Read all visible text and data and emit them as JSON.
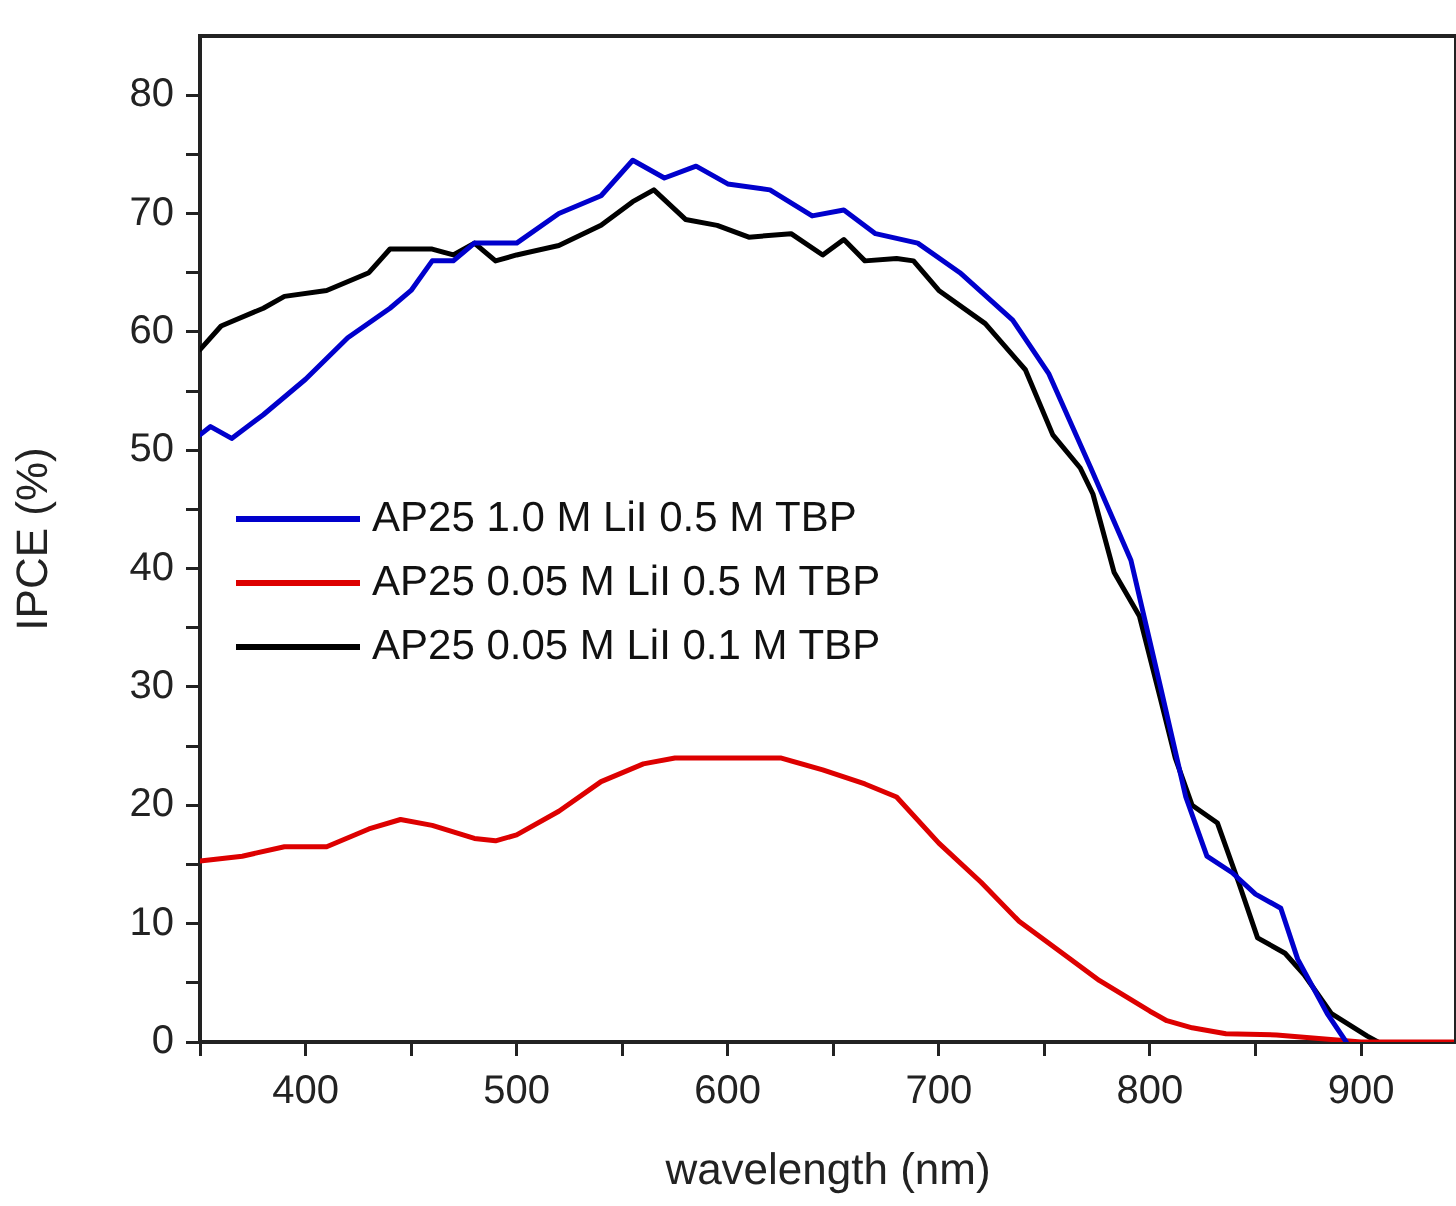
{
  "chart_data": {
    "type": "line",
    "xlabel": "wavelength (nm)",
    "ylabel": "IPCE (%)",
    "xlim": [
      350,
      945
    ],
    "ylim": [
      0,
      85
    ],
    "xticks": [
      {
        "value": 350,
        "label": null
      },
      400,
      {
        "value": 450,
        "label": null
      },
      500,
      {
        "value": 550,
        "label": null
      },
      600,
      {
        "value": 650,
        "label": null
      },
      700,
      {
        "value": 750,
        "label": null
      },
      800,
      {
        "value": 850,
        "label": null
      },
      900
    ],
    "yticks": [
      0,
      {
        "value": 5,
        "label": null
      },
      10,
      {
        "value": 15,
        "label": null
      },
      20,
      {
        "value": 25,
        "label": null
      },
      30,
      {
        "value": 35,
        "label": null
      },
      40,
      {
        "value": 45,
        "label": null
      },
      50,
      {
        "value": 55,
        "label": null
      },
      60,
      {
        "value": 65,
        "label": null
      },
      70,
      {
        "value": 75,
        "label": null
      },
      80
    ],
    "grid": false,
    "legend": "left",
    "marker": "none",
    "line_style": "solid",
    "series": [
      {
        "name": "AP25 1.0 M LiI 0.5 M TBP",
        "color": "#0000cc",
        "x": [
          350,
          355,
          365,
          380,
          400,
          420,
          440,
          450,
          460,
          470,
          480,
          490,
          500,
          520,
          540,
          555,
          570,
          585,
          600,
          620,
          640,
          655,
          670,
          690,
          710,
          735,
          752,
          772,
          791,
          805,
          817,
          827,
          839,
          850,
          862,
          870,
          884,
          893
        ],
        "values": [
          51.3,
          52,
          51,
          53,
          56,
          59.5,
          62,
          63.5,
          66,
          66,
          67.5,
          67.5,
          67.5,
          70,
          71.5,
          74.5,
          73,
          74,
          72.5,
          72,
          69.8,
          70.3,
          68.3,
          67.5,
          65,
          61,
          56.5,
          48.5,
          40.7,
          30,
          20.7,
          15.7,
          14.3,
          12.5,
          11.3,
          7,
          2.4,
          0
        ]
      },
      {
        "name": "AP25 0.05 M LiI 0.5 M TBP",
        "color": "#dd0000",
        "x": [
          350,
          370,
          390,
          410,
          430,
          445,
          460,
          480,
          490,
          500,
          520,
          540,
          560,
          575,
          600,
          625,
          645,
          665,
          680,
          700,
          720,
          738,
          760,
          776,
          800,
          808,
          820,
          836,
          860,
          880,
          900,
          945
        ],
        "values": [
          15.3,
          15.7,
          16.5,
          16.5,
          18,
          18.8,
          18.3,
          17.2,
          17,
          17.5,
          19.5,
          22,
          23.5,
          24,
          24,
          24,
          23,
          21.8,
          20.7,
          16.8,
          13.5,
          10.2,
          7.3,
          5.2,
          2.6,
          1.8,
          1.2,
          0.7,
          0.6,
          0.3,
          0,
          0
        ]
      },
      {
        "name": "AP25 0.05 M LiI 0.1 M TBP",
        "color": "#000000",
        "x": [
          350,
          360,
          380,
          390,
          410,
          430,
          440,
          460,
          470,
          480,
          490,
          500,
          520,
          540,
          555,
          565,
          580,
          595,
          610,
          630,
          645,
          655,
          665,
          680,
          688,
          700,
          722,
          741,
          754,
          767,
          773,
          783,
          795,
          805,
          812,
          820,
          832,
          842,
          851,
          864,
          873,
          886,
          903,
          908
        ],
        "values": [
          58.5,
          60.5,
          62,
          63,
          63.5,
          65,
          67,
          67,
          66.5,
          67.5,
          66,
          66.5,
          67.3,
          69,
          71,
          72,
          69.5,
          69,
          68,
          68.3,
          66.5,
          67.8,
          66,
          66.2,
          66,
          63.5,
          60.7,
          56.8,
          51.3,
          48.5,
          46.3,
          39.7,
          36,
          29,
          24,
          20,
          18.5,
          13.5,
          8.8,
          7.5,
          5.7,
          2.4,
          0.5,
          0
        ]
      }
    ]
  }
}
